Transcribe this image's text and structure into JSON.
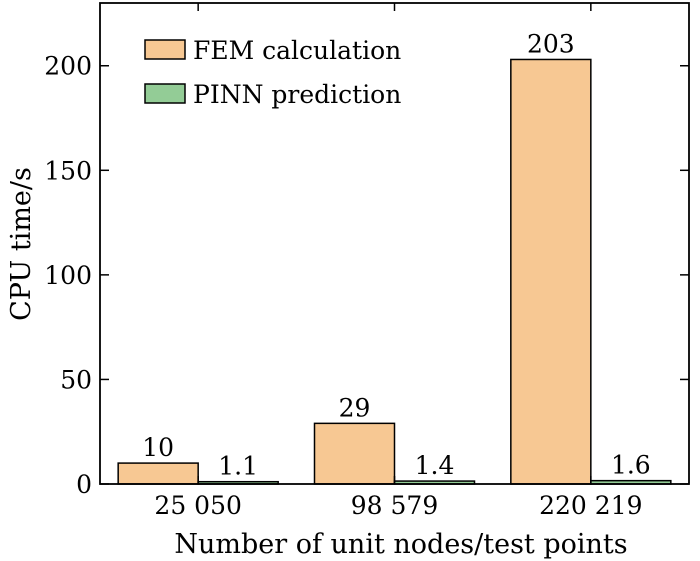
{
  "chart_data": {
    "type": "bar",
    "title": "",
    "xlabel": "Number of unit nodes/test points",
    "ylabel": "CPU time/s",
    "categories": [
      "25 050",
      "98 579",
      "220 219"
    ],
    "series": [
      {
        "name": "FEM calculation",
        "values": [
          10,
          29,
          203
        ],
        "labels": [
          "10",
          "29",
          "203"
        ],
        "color": "#f7c893"
      },
      {
        "name": "PINN prediction",
        "values": [
          1.1,
          1.4,
          1.6
        ],
        "labels": [
          "1.1",
          "1.4",
          "1.6"
        ],
        "color": "#93cc96"
      }
    ],
    "ylim": [
      0,
      230
    ],
    "yticks": [
      0,
      50,
      100,
      150,
      200
    ],
    "grid": false,
    "legend_position": "top-left"
  }
}
